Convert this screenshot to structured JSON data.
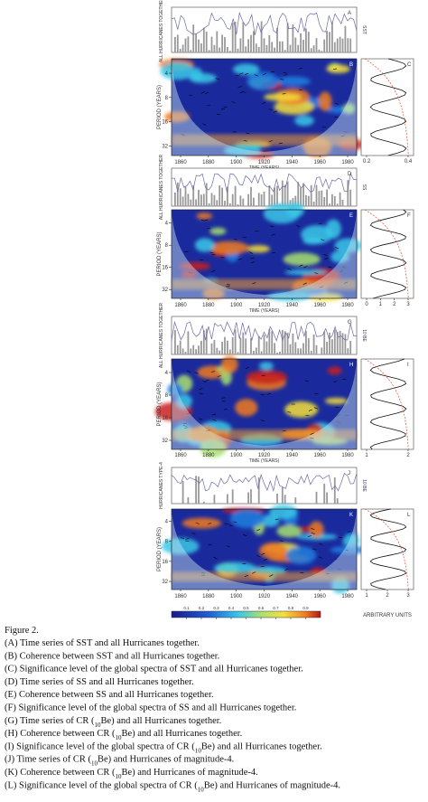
{
  "figure": {
    "panels": [
      {
        "series_letter": "A",
        "coherence_letter": "B",
        "spectrum_letter": "C",
        "series_label": "ALL HURRICANES TOGETHER",
        "right_label": "SST",
        "spectrum_ticks": [
          0.2,
          0.4
        ]
      },
      {
        "series_letter": "D",
        "coherence_letter": "E",
        "spectrum_letter": "F",
        "series_label": "ALL HURRICANES TOGETHER",
        "right_label": "SS",
        "spectrum_ticks": [
          0,
          1,
          2,
          3
        ]
      },
      {
        "series_letter": "G",
        "coherence_letter": "H",
        "spectrum_letter": "I",
        "series_label": "ALL HURRICANES TOGETHER",
        "right_label": "10 BE",
        "spectrum_ticks": [
          1,
          2
        ]
      },
      {
        "series_letter": "J",
        "coherence_letter": "K",
        "spectrum_letter": "L",
        "series_label": "HURRICANES TYPE-4",
        "right_label": "10 BE",
        "spectrum_ticks": [
          1,
          2,
          3
        ]
      }
    ],
    "years": [
      1860,
      1880,
      1900,
      1920,
      1940,
      1960,
      1980
    ],
    "periods": [
      4,
      8,
      16,
      32
    ],
    "period_label": "PERIOD (YEARS)",
    "time_label": "TIME (YEARS)",
    "colorbar_ticks": [
      0.1,
      0.2,
      0.3,
      0.4,
      0.5,
      0.6,
      0.7,
      0.8,
      0.9
    ],
    "spectrum_unit": "ARBITRARY UNITS"
  },
  "caption": {
    "title": "Figure 2.",
    "lines": [
      "(A) Time series of SST and all Hurricanes together.",
      "(B) Coherence between SST and all Hurricanes together.",
      "(C) Significance level of the global spectra of SST and all Hurricanes together.",
      "(D) Time series of SS and all Hurricanes together.",
      "(E) Coherence between SS and all Hurricanes together.",
      "(F) Significance level of the global spectra of SS and all Hurricanes together.",
      {
        "before": "(G) Time series of CR (",
        "sub": "10",
        "after": "Be) and all Hurricanes together."
      },
      {
        "before": "(H) Coherence between CR (",
        "sub": "10",
        "after": "Be) and all Hurricanes together."
      },
      {
        "before": "(I) Significance level of the global spectra of CR (",
        "sub": "10",
        "after": "Be) and all Hurricanes together."
      },
      {
        "before": "(J) Time series of CR (",
        "sub": "10",
        "after": "Be) and Hurricanes of magnitude-4."
      },
      {
        "before": "(K) Coherence between CR (",
        "sub": "10",
        "after": "Be) and Hurricanes of magnitude-4."
      },
      {
        "before": "(L) Significance level of the global spectra of CR (",
        "sub": "10",
        "after": "Be) and Hurricanes of magnitude-4."
      }
    ]
  }
}
